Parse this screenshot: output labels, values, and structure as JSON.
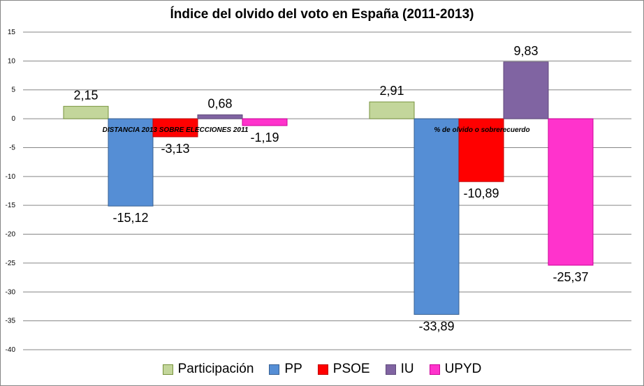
{
  "chart_data": {
    "type": "bar",
    "title": "Índice del olvido del voto en España (2011-2013)",
    "groups": [
      "DISTANCIA 2013 SOBRE ELECCIONES 2011",
      "% de olvido o sobrerecuerdo"
    ],
    "ylim": [
      -40,
      15
    ],
    "yticks": [
      15,
      10,
      5,
      0,
      -5,
      -10,
      -15,
      -20,
      -25,
      -30,
      -35,
      -40
    ],
    "grid": true,
    "legend_position": "bottom",
    "series": [
      {
        "name": "Participación",
        "color": "#C3D69B",
        "border": "#77933C",
        "values": [
          2.15,
          2.91
        ],
        "labels": [
          "2,15",
          "2,91"
        ]
      },
      {
        "name": "PP",
        "color": "#558ED5",
        "border": "#376092",
        "values": [
          -15.12,
          -33.89
        ],
        "labels": [
          "-15,12",
          "-33,89"
        ]
      },
      {
        "name": "PSOE",
        "color": "#FF0000",
        "border": "#C00000",
        "values": [
          -3.13,
          -10.89
        ],
        "labels": [
          "-3,13",
          "-10,89"
        ]
      },
      {
        "name": "IU",
        "color": "#8064A2",
        "border": "#604A7B",
        "values": [
          0.68,
          9.83
        ],
        "labels": [
          "0,68",
          "9,83"
        ]
      },
      {
        "name": "UPYD",
        "color": "#FF33CC",
        "border": "#CC0099",
        "values": [
          -1.19,
          -25.37
        ],
        "labels": [
          "-1,19",
          "-25,37"
        ]
      }
    ]
  }
}
